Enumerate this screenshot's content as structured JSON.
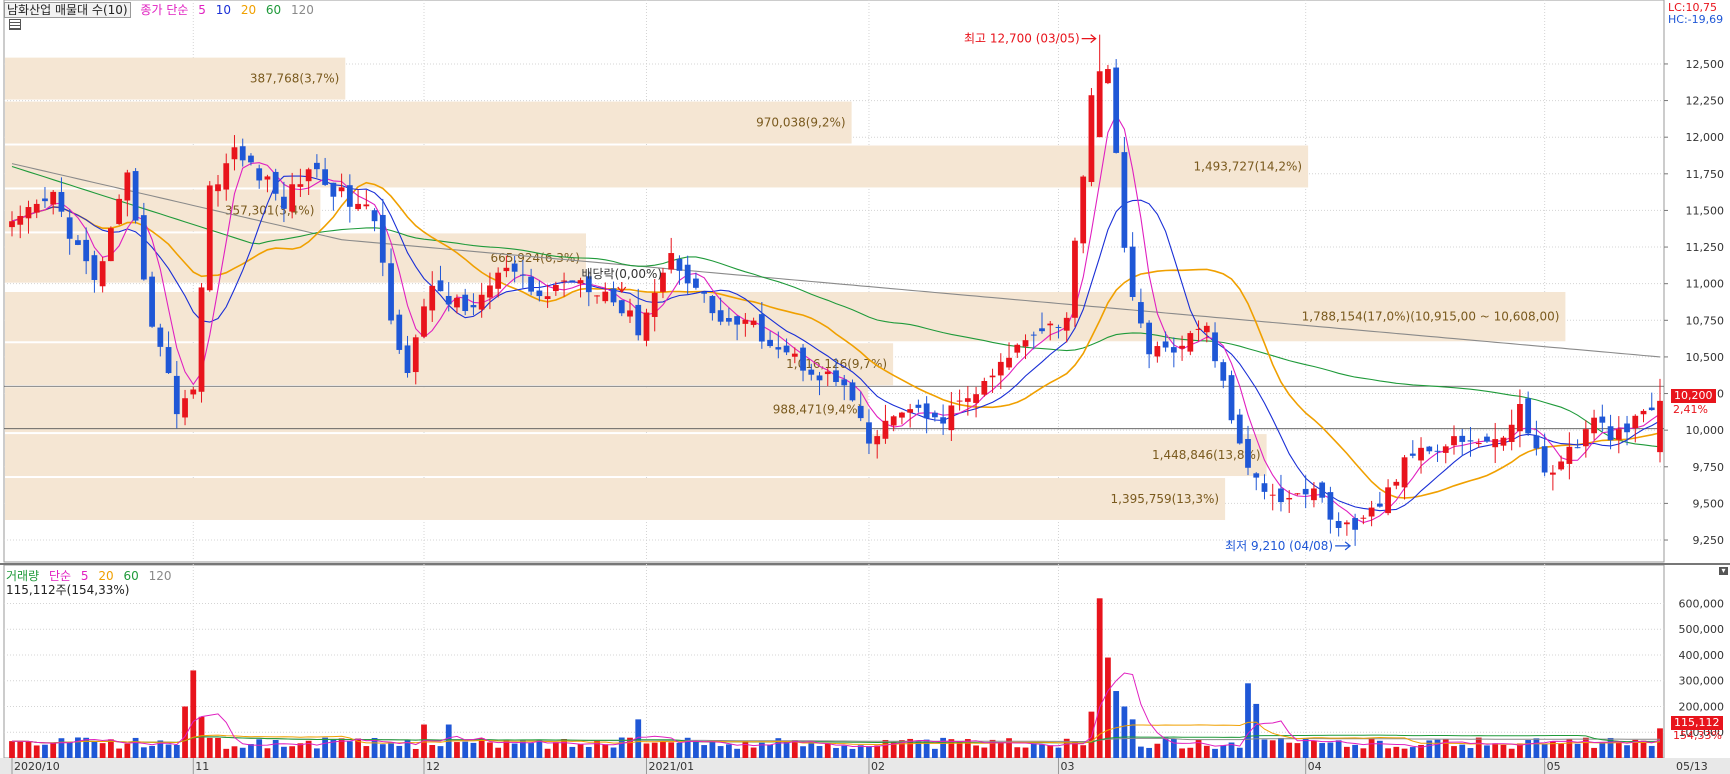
{
  "header": {
    "title": "남화산업 매물대 수(10)",
    "ma_prefix": "종가 단순",
    "ma_periods": [
      "5",
      "10",
      "20",
      "60",
      "120"
    ],
    "lc": "LC:10,75",
    "hc": "HC:-19,69"
  },
  "volume_header": {
    "title": "거래량",
    "ma_prefix": "단순",
    "ma_periods": [
      "5",
      "20",
      "60",
      "120"
    ],
    "current": "115,112주(154,33%)"
  },
  "last": {
    "price_label": "10,200",
    "change_label": "2,41%",
    "volume_label": "115,112",
    "volume_pct_label": "154,33%"
  },
  "colors": {
    "up": "#e8141c",
    "down": "#1f57d6",
    "ma5": "#e020c0",
    "ma10": "#1a2fd6",
    "ma20": "#f0a000",
    "ma60": "#1f9a3a",
    "ma120": "#8a8a8a",
    "profile_band": "#f5e6d3",
    "profile_text": "#7a5a1e"
  },
  "chart_data": [
    {
      "type": "candlestick",
      "ylim": [
        9100,
        12800
      ],
      "yticks": [
        9250,
        9500,
        9750,
        10000,
        10250,
        10500,
        10750,
        11000,
        11250,
        11500,
        11750,
        12000,
        12250,
        12500
      ],
      "ytick_labels": [
        "9,250",
        "9,500",
        "9,750",
        "10,000",
        "10,250",
        "10,500",
        "10,750",
        "11,000",
        "11,250",
        "11,500",
        "11,750",
        "12,000",
        "12,250",
        "12,500"
      ],
      "x_labels": [
        {
          "label": "2020/10",
          "index": 0
        },
        {
          "label": "11",
          "index": 22
        },
        {
          "label": "12",
          "index": 50
        },
        {
          "label": "2021/01",
          "index": 77
        },
        {
          "label": "02",
          "index": 104
        },
        {
          "label": "03",
          "index": 127
        },
        {
          "label": "04",
          "index": 157
        },
        {
          "label": "05",
          "index": 186
        },
        {
          "label": "05/13",
          "index": 200
        }
      ],
      "volume_profile": [
        {
          "from": 12250,
          "to": 12550,
          "label": "387,768(3,7%)",
          "length": 0.205
        },
        {
          "from": 11950,
          "to": 12250,
          "label": "970,038(9,2%)",
          "length": 0.51
        },
        {
          "from": 11650,
          "to": 11950,
          "label": "1,493,727(14,2%)",
          "length": 0.785
        },
        {
          "from": 11350,
          "to": 11650,
          "label": "357,301(3,4%)",
          "length": 0.19
        },
        {
          "from": 11000,
          "to": 11350,
          "label": "665,924(6,3%)",
          "length": 0.35
        },
        {
          "from": 10600,
          "to": 10950,
          "label": "1,788,154(17,0%)(10,915,00 ~ 10,608,00)",
          "length": 0.94
        },
        {
          "from": 10300,
          "to": 10600,
          "label": "1,016,126(9,7%)",
          "length": 0.535
        },
        {
          "from": 9980,
          "to": 10300,
          "label": "988,471(9,4%)",
          "length": 0.52
        },
        {
          "from": 9680,
          "to": 9980,
          "label": "1,448,846(13,8%)",
          "length": 0.76
        },
        {
          "from": 9380,
          "to": 9680,
          "label": "1,395,759(13,3%)",
          "length": 0.735
        }
      ],
      "reference_lines": [
        10300,
        10010
      ],
      "annotations": {
        "high": "최고 12,700 (03/05)",
        "high_value": 12700,
        "high_index": 132,
        "low": "최저 9,210 (04/08)",
        "low_value": 9210,
        "low_index": 163,
        "dividend": "배당락(0,00%)",
        "dividend_index": 74
      }
    },
    {
      "type": "bar",
      "name": "거래량",
      "ylim": [
        0,
        660000
      ],
      "yticks": [
        100000,
        200000,
        300000,
        400000,
        500000,
        600000
      ],
      "ytick_labels": [
        "100,000",
        "200,000",
        "300,000",
        "400,000",
        "500,000",
        "600,000"
      ]
    }
  ]
}
